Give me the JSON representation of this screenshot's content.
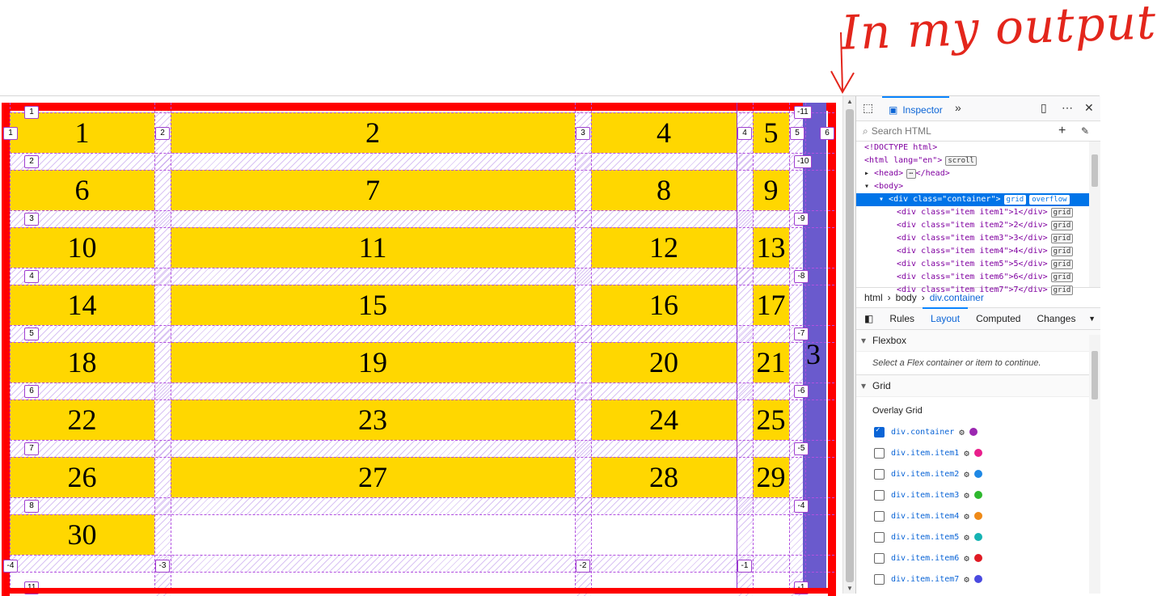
{
  "annotation": {
    "text": "In my output"
  },
  "grid": {
    "rows": [
      [
        "1",
        "2",
        "4",
        "5"
      ],
      [
        "6",
        "7",
        "8",
        "9"
      ],
      [
        "10",
        "11",
        "12",
        "13"
      ],
      [
        "14",
        "15",
        "16",
        "17"
      ],
      [
        "18",
        "19",
        "20",
        "21"
      ],
      [
        "22",
        "23",
        "24",
        "25"
      ],
      [
        "26",
        "27",
        "28",
        "29"
      ],
      [
        "30"
      ]
    ],
    "spanning_item": "3",
    "row_line_labels_left": [
      "1",
      "2",
      "3",
      "4",
      "5",
      "6",
      "7",
      "8",
      "-4",
      "11"
    ],
    "row_line_labels_right": [
      "-11",
      "-10",
      "-9",
      "-8",
      "-7",
      "-6",
      "-5",
      "-4",
      "-1"
    ],
    "col_line_labels_top": [
      "1",
      "2",
      "3",
      "4",
      "5",
      "6"
    ],
    "col_line_labels_bottom": [
      "-3",
      "-2",
      "-1"
    ]
  },
  "devtools": {
    "tab_inspector": "Inspector",
    "search_placeholder": "Search HTML",
    "tree": {
      "doctype": "<!DOCTYPE html>",
      "html": "<html lang=\"en\">",
      "html_badge": "scroll",
      "head": "<head>",
      "head_close": "</head>",
      "body": "<body>",
      "container": "<div class=\"container\">",
      "container_badge1": "grid",
      "container_badge2": "overflow",
      "items": [
        "<div class=\"item item1\">1</div>",
        "<div class=\"item item2\">2</div>",
        "<div class=\"item item3\">3</div>",
        "<div class=\"item item4\">4</div>",
        "<div class=\"item item5\">5</div>",
        "<div class=\"item item6\">6</div>",
        "<div class=\"item item7\">7</div>"
      ],
      "item_badge": "grid"
    },
    "breadcrumb": [
      "html",
      "body",
      "div.container"
    ],
    "panel_tabs": [
      "Rules",
      "Layout",
      "Computed",
      "Changes"
    ],
    "flexbox": {
      "title": "Flexbox",
      "note": "Select a Flex container or item to continue."
    },
    "grid_section": {
      "title": "Grid",
      "overlay": "Overlay Grid"
    },
    "overlay_items": [
      {
        "label": "div.container",
        "checked": true,
        "color": "#9b27b0"
      },
      {
        "label": "div.item.item1",
        "checked": false,
        "color": "#e91e8c"
      },
      {
        "label": "div.item.item2",
        "checked": false,
        "color": "#1e88e5"
      },
      {
        "label": "div.item.item3",
        "checked": false,
        "color": "#2eb82e"
      },
      {
        "label": "div.item.item4",
        "checked": false,
        "color": "#ef8a17"
      },
      {
        "label": "div.item.item5",
        "checked": false,
        "color": "#16b3b3"
      },
      {
        "label": "div.item.item6",
        "checked": false,
        "color": "#e01b24"
      },
      {
        "label": "div.item.item7",
        "checked": false,
        "color": "#4a4ae0"
      }
    ]
  }
}
